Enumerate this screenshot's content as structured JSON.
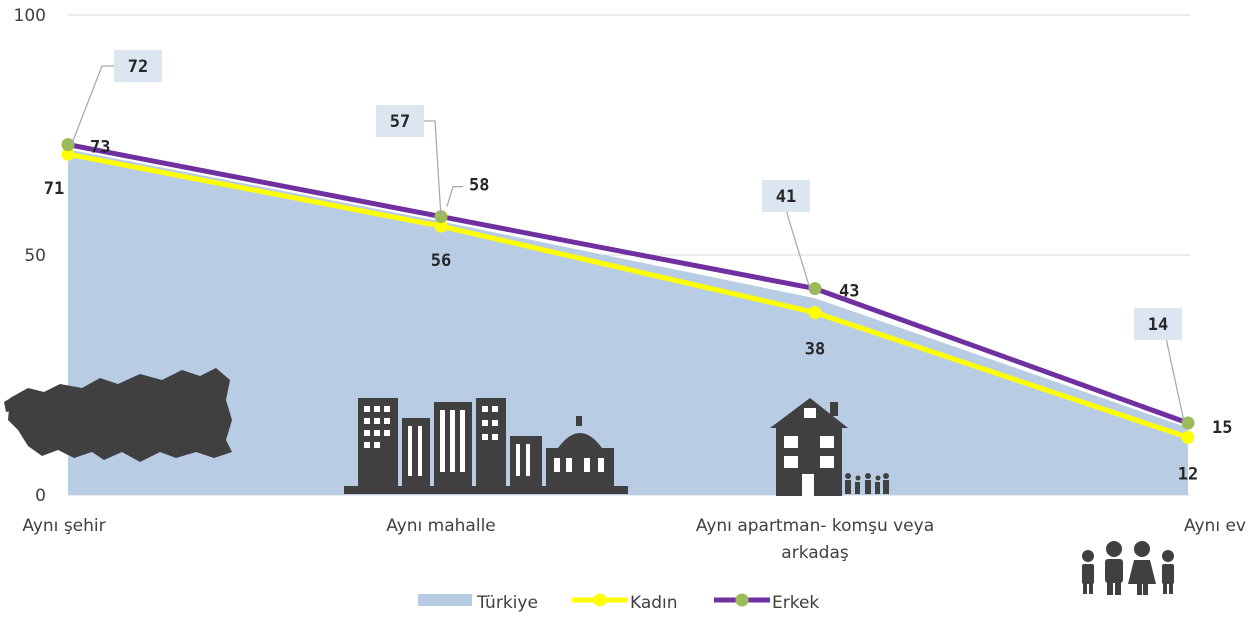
{
  "chart_data": {
    "type": "area",
    "categories": [
      "Aynı şehir",
      "Aynı mahalle",
      "Aynı apartman- komşu veya arkadaş",
      "Aynı ev"
    ],
    "ylim": [
      0,
      100
    ],
    "yticks": [
      0,
      50,
      100
    ],
    "grid": true,
    "legend_position": "bottom",
    "series": [
      {
        "name": "Türkiye",
        "type": "area",
        "values": [
          72,
          57,
          41,
          14
        ],
        "color": "#b8cce4"
      },
      {
        "name": "Kadın",
        "type": "line",
        "values": [
          71,
          56,
          38,
          12
        ],
        "color": "#ffff00"
      },
      {
        "name": "Erkek",
        "type": "line",
        "values": [
          73,
          58,
          43,
          15
        ],
        "color": "#7030a0",
        "marker_color": "#9bbb59"
      }
    ],
    "icons": [
      "turkey-map-icon",
      "city-buildings-icon",
      "apartment-family-icon",
      "family-icon"
    ]
  }
}
